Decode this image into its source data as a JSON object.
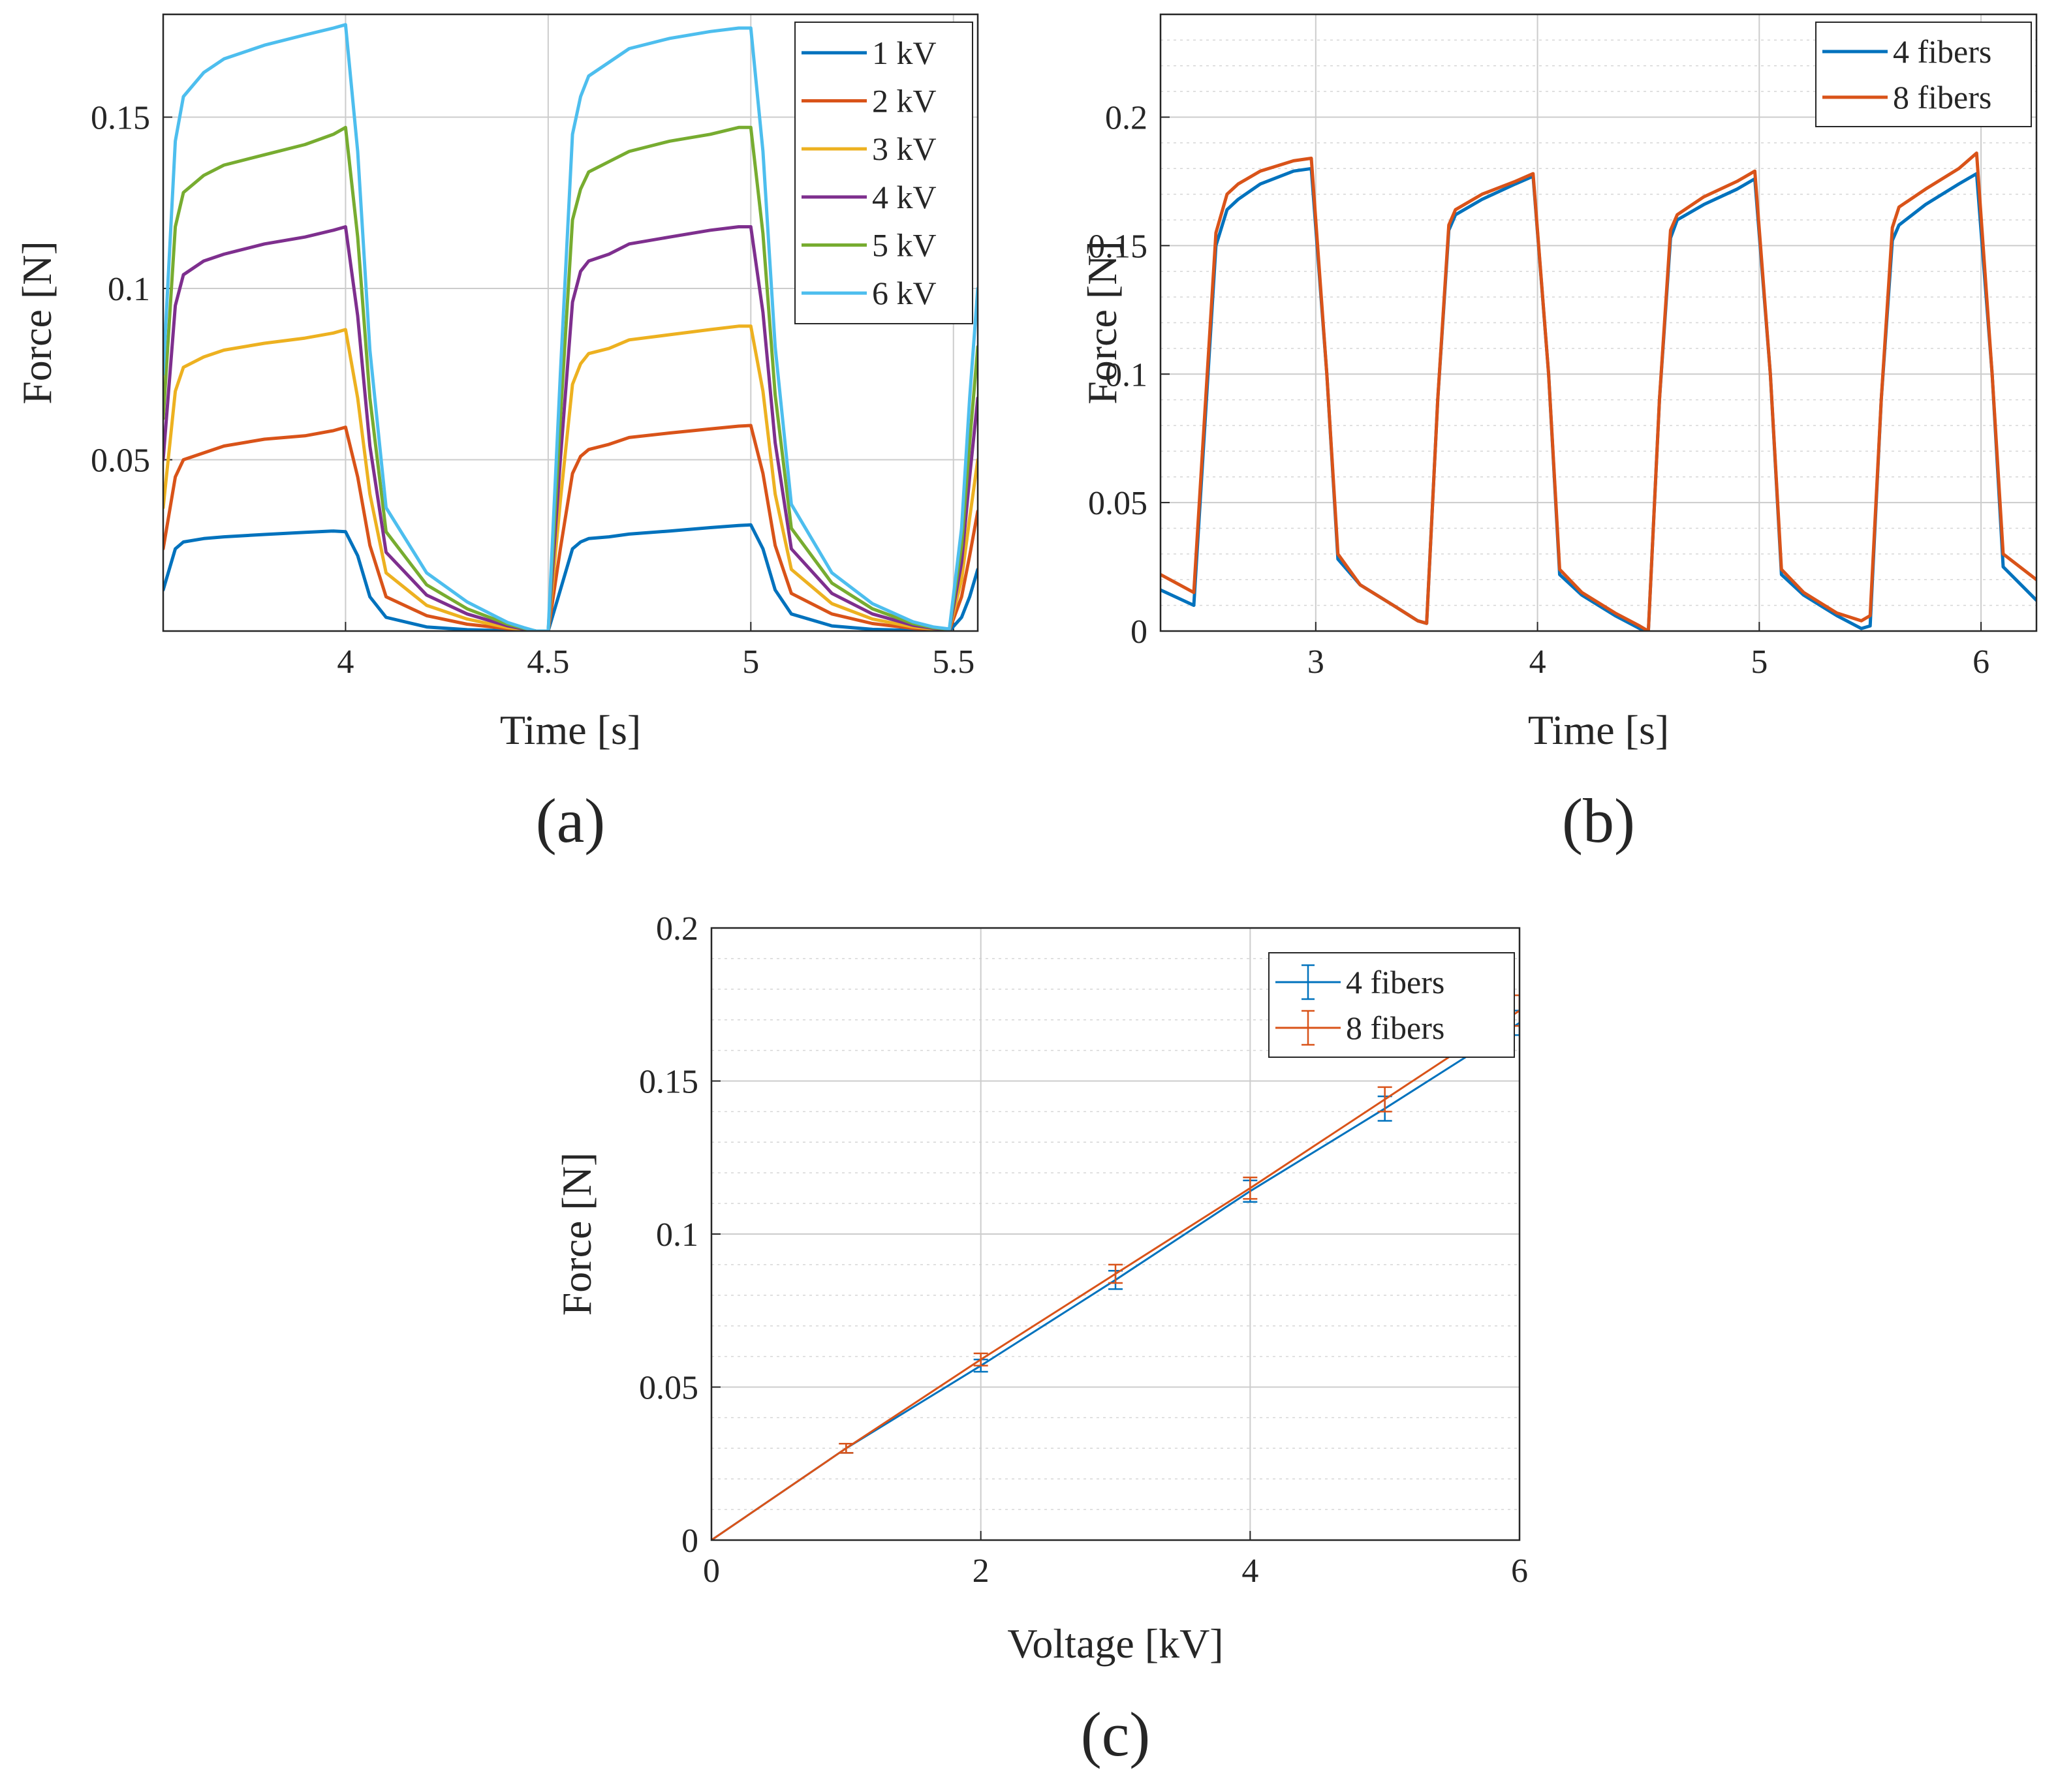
{
  "chart_data": [
    {
      "id": "a",
      "type": "line",
      "panel_label": "(a)",
      "xlabel": "Time [s]",
      "ylabel": "Force [N]",
      "xlim": [
        3.55,
        5.56
      ],
      "ylim": [
        0,
        0.18
      ],
      "xticks": [
        4,
        4.5,
        5,
        5.5
      ],
      "xtick_labels": [
        "4",
        "4.5",
        "5",
        "5.5"
      ],
      "yticks": [
        0.05,
        0.1,
        0.15
      ],
      "ytick_labels": [
        "0.05",
        "0.1",
        "0.15"
      ],
      "grid": true,
      "minor_grid": false,
      "legend": {
        "placement": "top-right"
      },
      "x": [
        3.55,
        3.58,
        3.6,
        3.65,
        3.7,
        3.8,
        3.9,
        3.97,
        4.0,
        4.03,
        4.06,
        4.1,
        4.2,
        4.3,
        4.4,
        4.44,
        4.47,
        4.5,
        4.53,
        4.56,
        4.58,
        4.6,
        4.65,
        4.7,
        4.8,
        4.9,
        4.97,
        5.0,
        5.03,
        5.06,
        5.1,
        5.2,
        5.3,
        5.4,
        5.45,
        5.49,
        5.52,
        5.54,
        5.56
      ],
      "series": [
        {
          "name": "1 kV",
          "color": "#0072BD",
          "values": [
            0.012,
            0.024,
            0.026,
            0.027,
            0.0275,
            0.0282,
            0.0288,
            0.0292,
            0.029,
            0.022,
            0.01,
            0.004,
            0.0012,
            0.0004,
            0.0001,
            0,
            0,
            0,
            0.012,
            0.024,
            0.026,
            0.027,
            0.0275,
            0.0283,
            0.0292,
            0.0302,
            0.0308,
            0.031,
            0.024,
            0.012,
            0.005,
            0.0015,
            0.0005,
            0.0002,
            0.0001,
            0,
            0.004,
            0.01,
            0.018
          ]
        },
        {
          "name": "2 kV",
          "color": "#D95319",
          "values": [
            0.024,
            0.045,
            0.05,
            0.052,
            0.054,
            0.056,
            0.057,
            0.0585,
            0.0595,
            0.045,
            0.025,
            0.01,
            0.0045,
            0.002,
            0.0007,
            0.0003,
            0,
            0,
            0.024,
            0.046,
            0.051,
            0.053,
            0.0545,
            0.0565,
            0.0578,
            0.059,
            0.0598,
            0.06,
            0.046,
            0.025,
            0.011,
            0.005,
            0.0022,
            0.0008,
            0.0004,
            0.0002,
            0.01,
            0.022,
            0.035
          ]
        },
        {
          "name": "3 kV",
          "color": "#EDB120",
          "values": [
            0.036,
            0.07,
            0.077,
            0.08,
            0.082,
            0.084,
            0.0855,
            0.087,
            0.088,
            0.068,
            0.04,
            0.017,
            0.0075,
            0.0035,
            0.001,
            0.0004,
            0,
            0,
            0.038,
            0.072,
            0.078,
            0.081,
            0.0825,
            0.085,
            0.0865,
            0.088,
            0.089,
            0.089,
            0.07,
            0.04,
            0.018,
            0.008,
            0.0035,
            0.0012,
            0.0006,
            0.0003,
            0.015,
            0.033,
            0.05
          ]
        },
        {
          "name": "4 kV",
          "color": "#7E2F8E",
          "values": [
            0.05,
            0.095,
            0.104,
            0.108,
            0.11,
            0.113,
            0.115,
            0.117,
            0.118,
            0.092,
            0.054,
            0.023,
            0.0105,
            0.005,
            0.0015,
            0.0006,
            0,
            0,
            0.05,
            0.096,
            0.105,
            0.108,
            0.11,
            0.113,
            0.115,
            0.117,
            0.118,
            0.118,
            0.093,
            0.055,
            0.024,
            0.011,
            0.005,
            0.0017,
            0.0008,
            0.0004,
            0.02,
            0.045,
            0.068
          ]
        },
        {
          "name": "5 kV",
          "color": "#77AC30",
          "values": [
            0.062,
            0.118,
            0.128,
            0.133,
            0.136,
            0.139,
            0.142,
            0.145,
            0.147,
            0.115,
            0.068,
            0.029,
            0.0135,
            0.0065,
            0.002,
            0.0008,
            0,
            0,
            0.062,
            0.12,
            0.129,
            0.134,
            0.137,
            0.14,
            0.143,
            0.145,
            0.147,
            0.147,
            0.116,
            0.069,
            0.03,
            0.014,
            0.0065,
            0.0022,
            0.001,
            0.0005,
            0.025,
            0.055,
            0.083
          ]
        },
        {
          "name": "6 kV",
          "color": "#4DBEEE",
          "values": [
            0.075,
            0.143,
            0.156,
            0.163,
            0.167,
            0.171,
            0.174,
            0.176,
            0.177,
            0.14,
            0.082,
            0.036,
            0.017,
            0.0085,
            0.0025,
            0.001,
            0,
            0,
            0.075,
            0.145,
            0.156,
            0.162,
            0.166,
            0.17,
            0.173,
            0.175,
            0.176,
            0.176,
            0.14,
            0.083,
            0.037,
            0.017,
            0.008,
            0.0027,
            0.0012,
            0.0006,
            0.03,
            0.068,
            0.1
          ]
        }
      ]
    },
    {
      "id": "b",
      "type": "line",
      "panel_label": "(b)",
      "xlabel": "Time [s]",
      "ylabel": "Force [N]",
      "xlim": [
        2.3,
        6.25
      ],
      "ylim": [
        0,
        0.24
      ],
      "xticks": [
        3,
        4,
        5,
        6
      ],
      "xtick_labels": [
        "3",
        "4",
        "5",
        "6"
      ],
      "yticks": [
        0,
        0.05,
        0.1,
        0.15,
        0.2
      ],
      "ytick_labels": [
        "0",
        "0.05",
        "0.1",
        "0.15",
        "0.2"
      ],
      "grid": true,
      "minor_grid": true,
      "legend": {
        "placement": "top-right"
      },
      "series": [
        {
          "name": "4 fibers",
          "color": "#0072BD",
          "x": [
            2.3,
            2.45,
            2.5,
            2.55,
            2.6,
            2.65,
            2.75,
            2.9,
            2.98,
            3.05,
            3.1,
            3.2,
            3.35,
            3.46,
            3.5,
            3.55,
            3.6,
            3.63,
            3.75,
            3.9,
            3.98,
            4.05,
            4.1,
            4.2,
            4.35,
            4.46,
            4.5,
            4.55,
            4.6,
            4.63,
            4.75,
            4.9,
            4.98,
            5.05,
            5.1,
            5.2,
            5.35,
            5.46,
            5.5,
            5.55,
            5.6,
            5.63,
            5.75,
            5.9,
            5.98,
            6.05,
            6.1,
            6.25
          ],
          "values": [
            0.016,
            0.01,
            0.08,
            0.15,
            0.164,
            0.168,
            0.174,
            0.179,
            0.18,
            0.1,
            0.028,
            0.018,
            0.01,
            0.004,
            0.003,
            0.09,
            0.156,
            0.162,
            0.168,
            0.174,
            0.177,
            0.1,
            0.022,
            0.014,
            0.006,
            0.001,
            0.0,
            0.09,
            0.153,
            0.16,
            0.166,
            0.172,
            0.176,
            0.1,
            0.022,
            0.014,
            0.006,
            0.001,
            0.002,
            0.09,
            0.152,
            0.158,
            0.166,
            0.174,
            0.178,
            0.1,
            0.025,
            0.012
          ]
        },
        {
          "name": "8 fibers",
          "color": "#D95319",
          "x": [
            2.3,
            2.45,
            2.5,
            2.55,
            2.6,
            2.65,
            2.75,
            2.9,
            2.98,
            3.05,
            3.1,
            3.2,
            3.35,
            3.46,
            3.5,
            3.55,
            3.6,
            3.63,
            3.75,
            3.9,
            3.98,
            4.05,
            4.1,
            4.2,
            4.35,
            4.46,
            4.5,
            4.55,
            4.6,
            4.63,
            4.75,
            4.9,
            4.98,
            5.05,
            5.1,
            5.2,
            5.35,
            5.46,
            5.5,
            5.55,
            5.6,
            5.63,
            5.75,
            5.9,
            5.98,
            6.05,
            6.1,
            6.25
          ],
          "values": [
            0.022,
            0.015,
            0.085,
            0.155,
            0.17,
            0.174,
            0.179,
            0.183,
            0.184,
            0.1,
            0.03,
            0.018,
            0.01,
            0.004,
            0.003,
            0.09,
            0.158,
            0.164,
            0.17,
            0.175,
            0.178,
            0.1,
            0.024,
            0.015,
            0.007,
            0.002,
            0.0,
            0.09,
            0.156,
            0.162,
            0.169,
            0.175,
            0.179,
            0.1,
            0.024,
            0.015,
            0.007,
            0.004,
            0.006,
            0.09,
            0.157,
            0.165,
            0.172,
            0.18,
            0.186,
            0.1,
            0.03,
            0.02
          ]
        }
      ]
    },
    {
      "id": "c",
      "type": "errorbar",
      "panel_label": "(c)",
      "xlabel": "Voltage [kV]",
      "ylabel": "Force [N]",
      "xlim": [
        0,
        6
      ],
      "ylim": [
        0,
        0.2
      ],
      "xticks": [
        0,
        2,
        4,
        6
      ],
      "xtick_labels": [
        "0",
        "2",
        "4",
        "6"
      ],
      "yticks": [
        0,
        0.05,
        0.1,
        0.15,
        0.2
      ],
      "ytick_labels": [
        "0",
        "0.05",
        "0.1",
        "0.15",
        "0.2"
      ],
      "grid": true,
      "minor_grid": true,
      "legend": {
        "placement": "top-right"
      },
      "x": [
        0,
        1,
        2,
        3,
        4,
        5,
        6
      ],
      "series": [
        {
          "name": "4 fibers",
          "color": "#0072BD",
          "values": [
            0,
            0.03,
            0.057,
            0.085,
            0.114,
            0.141,
            0.169
          ],
          "errors": [
            0,
            0.0015,
            0.002,
            0.003,
            0.0035,
            0.004,
            0.004
          ]
        },
        {
          "name": "8 fibers",
          "color": "#D95319",
          "values": [
            0,
            0.03,
            0.059,
            0.087,
            0.115,
            0.144,
            0.173
          ],
          "errors": [
            0,
            0.0015,
            0.002,
            0.003,
            0.0035,
            0.004,
            0.005
          ]
        }
      ]
    }
  ]
}
